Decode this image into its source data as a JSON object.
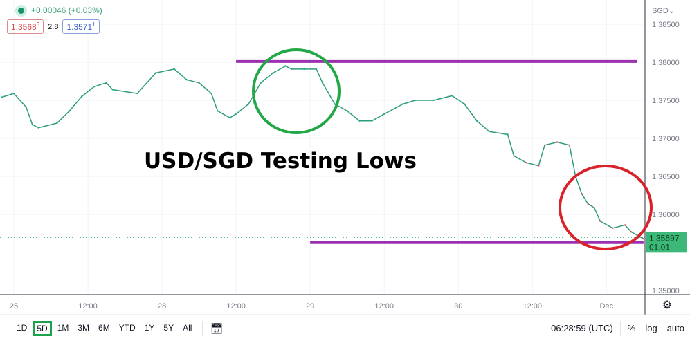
{
  "header": {
    "change": "+0.00046 (+0.03%)",
    "bid": "1.3568",
    "bid_sup": "3",
    "spread": "2.8",
    "ask": "1.3571",
    "ask_sup": "1",
    "status_color": "#1b8f6a"
  },
  "chart_data": {
    "type": "line",
    "title": "USD/SGD Testing Lows",
    "currency_label": "SGD",
    "ylim": [
      1.35,
      1.385
    ],
    "y_ticks": [
      "1.38500",
      "1.38000",
      "1.37500",
      "1.37000",
      "1.36500",
      "1.36000",
      "1.35000"
    ],
    "y_tick_values": [
      1.385,
      1.38,
      1.375,
      1.37,
      1.365,
      1.36,
      1.35
    ],
    "x_ticks": [
      {
        "label": "25",
        "t": "11-25 00:00"
      },
      {
        "label": "12:00",
        "t": "11-25 12:00"
      },
      {
        "label": "28",
        "t": "11-28 00:00"
      },
      {
        "label": "12:00",
        "t": "11-28 12:00"
      },
      {
        "label": "29",
        "t": "11-29 00:00"
      },
      {
        "label": "12:00",
        "t": "11-29 12:00"
      },
      {
        "label": "30",
        "t": "11-30 00:00"
      },
      {
        "label": "12:00",
        "t": "11-30 12:00"
      },
      {
        "label": "Dec",
        "t": "12-01 00:00"
      }
    ],
    "grid": true,
    "last_price": "1.35697",
    "last_price_value": 1.35697,
    "countdown": "01:01",
    "last_price_color": "#3cb878",
    "series": [
      {
        "t": "11-24 22:00",
        "p": 1.3754
      },
      {
        "t": "11-25 00:00",
        "p": 1.3759
      },
      {
        "t": "11-25 02:00",
        "p": 1.3741
      },
      {
        "t": "11-25 03:00",
        "p": 1.3718
      },
      {
        "t": "11-25 04:00",
        "p": 1.3714
      },
      {
        "t": "11-25 07:00",
        "p": 1.372
      },
      {
        "t": "11-25 09:00",
        "p": 1.3736
      },
      {
        "t": "11-25 11:00",
        "p": 1.3755
      },
      {
        "t": "11-25 13:00",
        "p": 1.3768
      },
      {
        "t": "11-25 15:00",
        "p": 1.3773
      },
      {
        "t": "11-25 16:00",
        "p": 1.3764
      },
      {
        "t": "11-25 20:00",
        "p": 1.3759
      },
      {
        "t": "11-25 22:00",
        "p": 1.3777
      },
      {
        "t": "11-25 23:00",
        "p": 1.3786
      },
      {
        "t": "11-28 02:00",
        "p": 1.3791
      },
      {
        "t": "11-28 04:00",
        "p": 1.3777
      },
      {
        "t": "11-28 06:00",
        "p": 1.3773
      },
      {
        "t": "11-28 08:00",
        "p": 1.3759
      },
      {
        "t": "11-28 09:00",
        "p": 1.3736
      },
      {
        "t": "11-28 11:00",
        "p": 1.3727
      },
      {
        "t": "11-28 12:00",
        "p": 1.3732
      },
      {
        "t": "11-28 14:00",
        "p": 1.3745
      },
      {
        "t": "11-28 16:00",
        "p": 1.3773
      },
      {
        "t": "11-28 18:00",
        "p": 1.3786
      },
      {
        "t": "11-28 20:00",
        "p": 1.3795
      },
      {
        "t": "11-28 21:00",
        "p": 1.3791
      },
      {
        "t": "11-28 23:00",
        "p": 1.3791
      },
      {
        "t": "11-29 01:00",
        "p": 1.3791
      },
      {
        "t": "11-29 02:00",
        "p": 1.3773
      },
      {
        "t": "11-29 04:00",
        "p": 1.3745
      },
      {
        "t": "11-29 06:00",
        "p": 1.3736
      },
      {
        "t": "11-29 08:00",
        "p": 1.3723
      },
      {
        "t": "11-29 10:00",
        "p": 1.3723
      },
      {
        "t": "11-29 12:00",
        "p": 1.3732
      },
      {
        "t": "11-29 15:00",
        "p": 1.3745
      },
      {
        "t": "11-29 17:00",
        "p": 1.375
      },
      {
        "t": "11-29 20:00",
        "p": 1.375
      },
      {
        "t": "11-29 23:00",
        "p": 1.3756
      },
      {
        "t": "11-30 01:00",
        "p": 1.3745
      },
      {
        "t": "11-30 03:00",
        "p": 1.3723
      },
      {
        "t": "11-30 05:00",
        "p": 1.3709
      },
      {
        "t": "11-30 08:00",
        "p": 1.3705
      },
      {
        "t": "11-30 09:00",
        "p": 1.3677
      },
      {
        "t": "11-30 11:00",
        "p": 1.3668
      },
      {
        "t": "11-30 13:00",
        "p": 1.3664
      },
      {
        "t": "11-30 14:00",
        "p": 1.3691
      },
      {
        "t": "11-30 16:00",
        "p": 1.3695
      },
      {
        "t": "11-30 18:00",
        "p": 1.3691
      },
      {
        "t": "11-30 19:00",
        "p": 1.365
      },
      {
        "t": "11-30 20:00",
        "p": 1.3627
      },
      {
        "t": "11-30 21:00",
        "p": 1.3614
      },
      {
        "t": "11-30 22:00",
        "p": 1.3609
      },
      {
        "t": "11-30 23:00",
        "p": 1.3591
      },
      {
        "t": "12-01 01:00",
        "p": 1.3582
      },
      {
        "t": "12-01 03:00",
        "p": 1.3586
      },
      {
        "t": "12-01 04:00",
        "p": 1.3577
      },
      {
        "t": "12-01 06:00",
        "p": 1.3568
      }
    ],
    "series_color": "#2e9c7a",
    "annotations": {
      "resistance": {
        "price": 1.3801,
        "from": "11-28 12:00",
        "to": "12-01 05:00",
        "color": "#9b30b0"
      },
      "support": {
        "price": 1.3563,
        "from": "11-29 00:00",
        "to": "12-01 06:00",
        "color": "#9b30b0"
      },
      "top_circle_color": "#22a847",
      "bottom_circle_color": "#d9222a"
    }
  },
  "bottombar": {
    "timeframes": [
      "1D",
      "5D",
      "1M",
      "3M",
      "6M",
      "YTD",
      "1Y",
      "5Y",
      "All"
    ],
    "active": "5D",
    "clock": "06:28:59 (UTC)",
    "percent": "%",
    "log": "log",
    "auto": "auto"
  }
}
